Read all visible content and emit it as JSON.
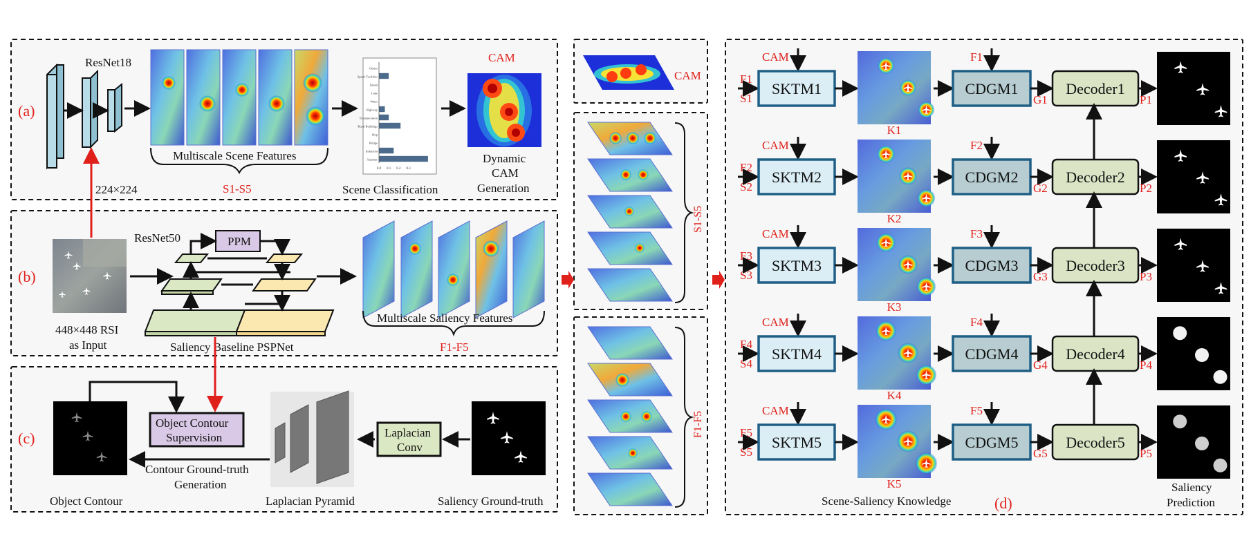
{
  "panels": {
    "a": {
      "tag": "(a)",
      "backbone": "ResNet18",
      "input_size": "224×224",
      "scene_features_label": "Multiscale Scene Features",
      "scene_features_range": "S1-S5",
      "classification_label": "Scene Classification",
      "cam_title": "CAM",
      "cam_gen_label": [
        "Dynamic",
        "CAM",
        "Generation"
      ],
      "classification_chart": {
        "categories": [
          "Others",
          "Sports Facilities",
          "Island",
          "Lake",
          "Water",
          "Highway",
          "Transportation",
          "Rural Buildings",
          "Ship",
          "Bridge",
          "Industrial",
          "Airplane"
        ],
        "values": [
          0,
          0.1,
          0,
          0,
          0,
          0.06,
          0.1,
          0.22,
          0,
          0,
          0.15,
          0.5
        ],
        "xticks": [
          "0.0",
          "0.1",
          "0.2",
          "0.3"
        ],
        "bar_color": "#4c6b8c"
      }
    },
    "b": {
      "tag": "(b)",
      "backbone": "ResNet50",
      "ppm": "PPM",
      "input_label": [
        "448×448 RSI",
        "as Input"
      ],
      "baseline_label": "Saliency Baseline PSPNet",
      "saliency_features_label": "Multiscale Saliency Features",
      "saliency_features_range": "F1-F5"
    },
    "c": {
      "tag": "(c)",
      "object_contour": "Object Contour",
      "contour_supervision": [
        "Object Contour",
        "Supervision"
      ],
      "contour_gt": [
        "Contour Ground-truth",
        "Generation"
      ],
      "laplacian_pyramid": "Laplacian Pyramid",
      "laplacian_conv": [
        "Laplacian",
        "Conv"
      ],
      "saliency_gt": "Saliency Ground-truth"
    },
    "middle": {
      "cam": "CAM",
      "s_range": "S1-S5",
      "f_range": "F1-F5"
    },
    "d": {
      "tag": "(d)",
      "knowledge_label": "Scene-Saliency Knowledge",
      "prediction_label": [
        "Saliency",
        "Prediction"
      ],
      "rows": [
        {
          "f": "F1",
          "s": "S1",
          "cam": "CAM",
          "sktm": "SKTM1",
          "k": "K1",
          "cdgm_in": "F1",
          "cdgm": "CDGM1",
          "g": "G1",
          "decoder": "Decoder1",
          "p": "P1"
        },
        {
          "f": "F2",
          "s": "S2",
          "cam": "CAM",
          "sktm": "SKTM2",
          "k": "K2",
          "cdgm_in": "F2",
          "cdgm": "CDGM2",
          "g": "G2",
          "decoder": "Decoder2",
          "p": "P2"
        },
        {
          "f": "F3",
          "s": "S3",
          "cam": "CAM",
          "sktm": "SKTM3",
          "k": "K3",
          "cdgm_in": "F3",
          "cdgm": "CDGM3",
          "g": "G3",
          "decoder": "Decoder3",
          "p": "P3"
        },
        {
          "f": "F4",
          "s": "S4",
          "cam": "CAM",
          "sktm": "SKTM4",
          "k": "K4",
          "cdgm_in": "F4",
          "cdgm": "CDGM4",
          "g": "G4",
          "decoder": "Decoder4",
          "p": "P4"
        },
        {
          "f": "F5",
          "s": "S5",
          "cam": "CAM",
          "sktm": "SKTM5",
          "k": "K5",
          "cdgm_in": "F5",
          "cdgm": "CDGM5",
          "g": "G5",
          "decoder": "Decoder5",
          "p": "P5"
        }
      ]
    }
  },
  "colors": {
    "accent_red": "#e0201b",
    "resnet_blue": "#b9dde8",
    "sktm_fill": "#dbeef6",
    "cdgm_fill": "#b7cdd2",
    "decoder_fill": "#dbe5c6",
    "ppm_fill": "#d9c9e6",
    "encoder_green": "#dbe8c4",
    "decoder_yellow": "#fbe7b0"
  }
}
